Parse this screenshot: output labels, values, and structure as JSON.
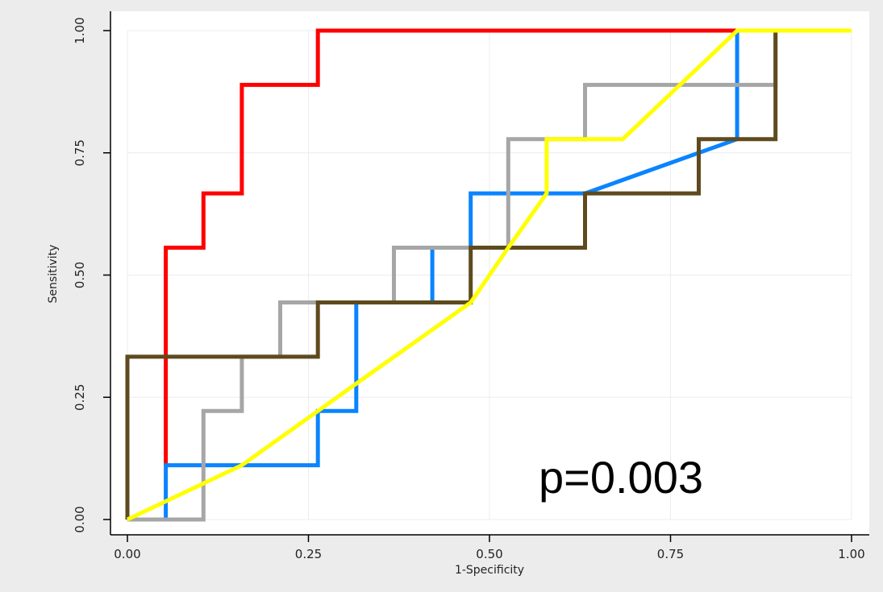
{
  "chart_data": {
    "type": "line",
    "title": "",
    "xlabel": "1-Specificity",
    "ylabel": "Sensitivity",
    "xlim": [
      0,
      1
    ],
    "ylim": [
      0,
      1
    ],
    "xticks": [
      "0.00",
      "0.25",
      "0.50",
      "0.75",
      "1.00"
    ],
    "yticks": [
      "0.00",
      "0.25",
      "0.50",
      "0.75",
      "1.00"
    ],
    "grid": true,
    "legend": "none",
    "annotation": "p=0.003",
    "series": [
      {
        "color": "#ff0000",
        "points": [
          [
            0.053,
            0.111
          ],
          [
            0.053,
            0.556
          ],
          [
            0.105,
            0.556
          ],
          [
            0.105,
            0.667
          ],
          [
            0.158,
            0.667
          ],
          [
            0.158,
            0.889
          ],
          [
            0.263,
            0.889
          ],
          [
            0.263,
            1.0
          ],
          [
            0.842,
            1.0
          ]
        ]
      },
      {
        "color": "#0a84ff",
        "points": [
          [
            0.053,
            0.0
          ],
          [
            0.053,
            0.111
          ],
          [
            0.263,
            0.111
          ],
          [
            0.263,
            0.222
          ],
          [
            0.316,
            0.222
          ],
          [
            0.316,
            0.444
          ],
          [
            0.421,
            0.444
          ],
          [
            0.421,
            0.556
          ],
          [
            0.474,
            0.556
          ],
          [
            0.474,
            0.667
          ],
          [
            0.632,
            0.667
          ],
          [
            0.842,
            0.778
          ],
          [
            0.842,
            1.0
          ]
        ]
      },
      {
        "color": "#a6a6a6",
        "points": [
          [
            0.0,
            0.0
          ],
          [
            0.105,
            0.0
          ],
          [
            0.105,
            0.222
          ],
          [
            0.158,
            0.222
          ],
          [
            0.158,
            0.333
          ],
          [
            0.211,
            0.333
          ],
          [
            0.211,
            0.444
          ],
          [
            0.368,
            0.444
          ],
          [
            0.368,
            0.556
          ],
          [
            0.526,
            0.556
          ],
          [
            0.526,
            0.778
          ],
          [
            0.632,
            0.778
          ],
          [
            0.632,
            0.889
          ],
          [
            0.895,
            0.889
          ],
          [
            0.895,
            1.0
          ]
        ]
      },
      {
        "color": "#5e4a1e",
        "points": [
          [
            0.0,
            0.0
          ],
          [
            0.0,
            0.333
          ],
          [
            0.263,
            0.333
          ],
          [
            0.263,
            0.444
          ],
          [
            0.474,
            0.444
          ],
          [
            0.474,
            0.556
          ],
          [
            0.632,
            0.556
          ],
          [
            0.632,
            0.667
          ],
          [
            0.789,
            0.667
          ],
          [
            0.789,
            0.778
          ],
          [
            0.895,
            0.778
          ],
          [
            0.895,
            1.0
          ]
        ]
      },
      {
        "color": "#ffff00",
        "points": [
          [
            0.0,
            0.0
          ],
          [
            0.158,
            0.111
          ],
          [
            0.316,
            0.278
          ],
          [
            0.474,
            0.444
          ],
          [
            0.526,
            0.556
          ],
          [
            0.579,
            0.667
          ],
          [
            0.579,
            0.778
          ],
          [
            0.684,
            0.778
          ],
          [
            0.842,
            1.0
          ],
          [
            1.0,
            1.0
          ]
        ]
      }
    ]
  }
}
